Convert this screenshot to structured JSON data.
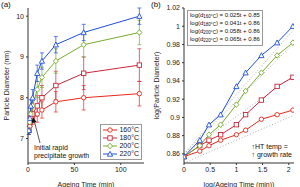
{
  "chart_data": [
    {
      "type": "line",
      "title": "(a)",
      "x_label": "Ageing Time (min)",
      "y_label": "Particle Diameter (nm)",
      "x": [
        1,
        2,
        3,
        5,
        10,
        15,
        30,
        60,
        120
      ],
      "xlim": [
        0,
        125
      ],
      "xticks": [
        0,
        50,
        100
      ],
      "ylim": [
        6.4,
        10.2
      ],
      "yticks": [
        7,
        8,
        9,
        10
      ],
      "legend": "lower right",
      "annotation": [
        "Initial rapid",
        "precipitate growth"
      ],
      "series": [
        {
          "name": "160°C",
          "color": "#e8291c",
          "marker": "circle",
          "values": [
            7.2,
            7.3,
            7.4,
            7.5,
            7.6,
            7.7,
            7.9,
            8.0,
            8.1
          ],
          "errors": [
            0.1,
            0.1,
            0.1,
            0.15,
            0.2,
            0.2,
            0.25,
            0.3,
            0.3
          ]
        },
        {
          "name": "180°C",
          "color": "#c8283c",
          "marker": "square",
          "values": [
            7.2,
            7.4,
            7.5,
            7.6,
            7.8,
            8.0,
            8.3,
            8.6,
            8.8
          ],
          "errors": [
            0.1,
            0.1,
            0.15,
            0.2,
            0.25,
            0.3,
            0.35,
            0.4,
            0.4
          ]
        },
        {
          "name": "200°C",
          "color": "#77ac30",
          "marker": "diamond",
          "values": [
            7.2,
            7.4,
            7.6,
            7.8,
            8.2,
            8.5,
            8.9,
            9.3,
            9.6
          ],
          "errors": [
            0.1,
            0.1,
            0.15,
            0.2,
            0.2,
            0.25,
            0.3,
            0.3,
            0.3
          ]
        },
        {
          "name": "220°C",
          "color": "#1f4fd8",
          "marker": "triangle",
          "values": [
            7.2,
            7.5,
            7.8,
            8.0,
            8.6,
            8.9,
            9.3,
            9.6,
            10.0
          ],
          "errors": [
            0.1,
            0.1,
            0.15,
            0.2,
            0.2,
            0.2,
            0.2,
            0.2,
            0.2
          ]
        }
      ]
    },
    {
      "type": "line",
      "title": "(b)",
      "x_label": "log(Ageing Time (min))",
      "y_label": "log(Particle Diameter)",
      "x": [
        0,
        0.301,
        0.477,
        0.699,
        1,
        1.176,
        1.477,
        1.778,
        2.079
      ],
      "xlim": [
        0,
        2.1
      ],
      "xticks": [
        0,
        0.5,
        1,
        1.5,
        2
      ],
      "ylim": [
        0.85,
        1.02
      ],
      "yticks": [
        0.86,
        0.88,
        0.9,
        0.92,
        0.94,
        0.96,
        0.98,
        1,
        1.02
      ],
      "annotation": [
        "↑HT temp =",
        "↑ growth rate"
      ],
      "series": [
        {
          "name": "160°C",
          "color": "#e8291c",
          "marker": "circle",
          "values": [
            0.857,
            0.863,
            0.869,
            0.875,
            0.881,
            0.886,
            0.898,
            0.903,
            0.908
          ]
        },
        {
          "name": "180°C",
          "color": "#c8283c",
          "marker": "square",
          "values": [
            0.857,
            0.869,
            0.875,
            0.881,
            0.892,
            0.903,
            0.919,
            0.934,
            0.944
          ]
        },
        {
          "name": "200°C",
          "color": "#77ac30",
          "marker": "diamond",
          "values": [
            0.857,
            0.869,
            0.881,
            0.892,
            0.914,
            0.929,
            0.949,
            0.968,
            0.982
          ]
        },
        {
          "name": "220°C",
          "color": "#1f4fd8",
          "marker": "triangle",
          "values": [
            0.857,
            0.875,
            0.892,
            0.903,
            0.934,
            0.949,
            0.968,
            0.982,
            1.0
          ]
        }
      ],
      "fits": [
        {
          "x": [
            0,
            2.1
          ],
          "values": [
            0.85,
            0.9025
          ],
          "color": "#9a9a9a",
          "line_style": "dotted",
          "equation": {
            "lhs": "log(d",
            "subscript": "160°C",
            "rhs": ") = 0.025t + 0.85"
          }
        },
        {
          "x": [
            0,
            2.1
          ],
          "values": [
            0.86,
            0.9461
          ],
          "color": "#9a9a9a",
          "line_style": "dotted",
          "equation": {
            "lhs": "log(d",
            "subscript": "180°C",
            "rhs": ") = 0.041t + 0.86"
          }
        },
        {
          "x": [
            0,
            2.1
          ],
          "values": [
            0.86,
            0.9818
          ],
          "color": "#9a9a9a",
          "line_style": "dotted",
          "equation": {
            "lhs": "log(d",
            "subscript": "200°C",
            "rhs": ") = 0.058t + 0.86"
          }
        },
        {
          "x": [
            0,
            2.1
          ],
          "values": [
            0.86,
            0.9965
          ],
          "color": "#9a9a9a",
          "line_style": "dotted",
          "equation": {
            "lhs": "log(d",
            "subscript": "220°C",
            "rhs": ") = 0.065t + 0.86"
          }
        }
      ]
    }
  ]
}
